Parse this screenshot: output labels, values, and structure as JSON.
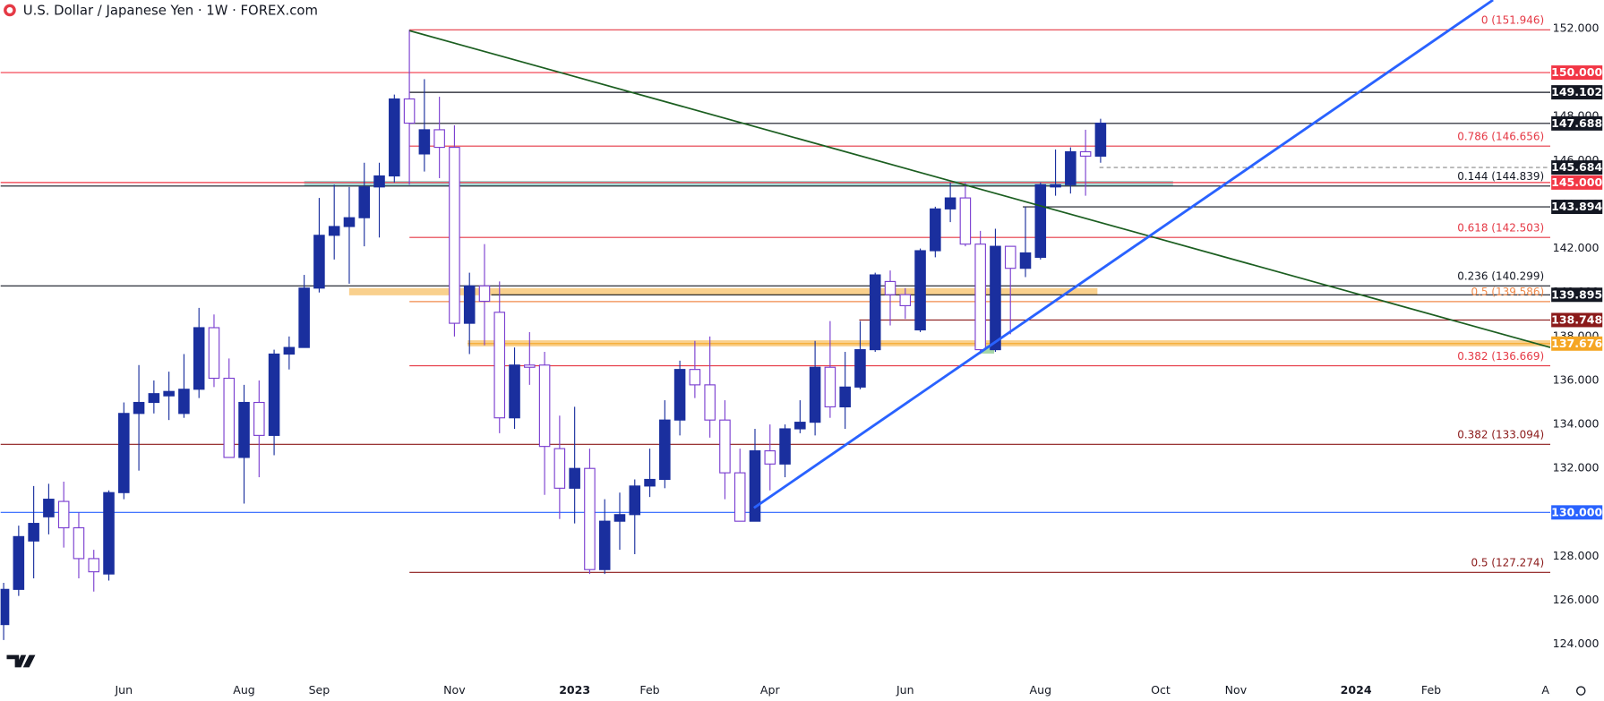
{
  "chart_data": {
    "type": "candlestick",
    "title": "U.S. Dollar / Japanese Yen · 1W · FOREX.com",
    "categories": [
      null,
      null,
      null,
      null,
      null,
      null,
      null,
      null,
      "Jun",
      null,
      null,
      null,
      null,
      null,
      null,
      null,
      "Aug",
      null,
      null,
      null,
      null,
      "Sep",
      null,
      null,
      null,
      null,
      null,
      null,
      null,
      null,
      "Nov",
      null,
      null,
      null,
      null,
      null,
      null,
      null,
      "2023",
      null,
      null,
      null,
      null,
      "Feb",
      null,
      null,
      null,
      null,
      null,
      null,
      null,
      "Apr",
      null,
      null,
      null,
      null,
      null,
      null,
      null,
      null,
      "Jun",
      null,
      null,
      null,
      null,
      null,
      null,
      null,
      null,
      "Aug",
      null,
      null,
      null,
      null,
      null,
      null,
      null,
      "Oct",
      null,
      null,
      null,
      null,
      "Nov",
      null,
      null,
      null,
      null,
      null,
      null,
      null,
      "2024",
      null,
      null,
      null,
      null,
      "Feb",
      null,
      null,
      null,
      null,
      null,
      null,
      null,
      "Apr"
    ],
    "open": [
      124.9,
      126.5,
      128.7,
      129.8,
      130.5,
      129.3,
      127.9,
      127.2,
      130.9,
      134.5,
      135.0,
      135.3,
      134.5,
      135.6,
      138.4,
      136.1,
      132.5,
      135.0,
      133.5,
      137.2,
      137.5,
      140.2,
      142.6,
      143.0,
      143.4,
      144.8,
      145.3,
      148.8,
      146.3,
      147.4,
      146.6,
      138.6,
      140.3,
      139.1,
      134.3,
      136.7,
      136.7,
      132.9,
      131.1,
      132.0,
      127.4,
      129.6,
      129.9,
      131.2,
      131.5,
      134.2,
      136.5,
      135.8,
      134.2,
      131.8,
      129.6,
      132.8,
      132.2,
      133.8,
      134.1,
      136.6,
      134.8,
      135.7,
      137.4,
      140.5,
      139.9,
      138.3,
      141.9,
      143.8,
      144.3,
      142.2,
      137.4,
      142.1,
      141.1,
      141.6,
      144.8,
      144.9,
      146.4,
      146.2,
      null,
      null,
      null,
      null,
      null,
      null,
      null,
      null,
      null,
      null,
      null,
      null,
      null,
      null,
      null,
      null,
      null,
      null,
      null,
      null,
      null,
      null,
      null,
      null,
      null,
      null,
      null,
      null,
      null,
      null
    ],
    "high": [
      126.8,
      129.4,
      131.2,
      131.3,
      131.4,
      130.0,
      128.3,
      131.0,
      135.0,
      136.7,
      136.0,
      136.4,
      137.2,
      139.3,
      139.0,
      137.0,
      135.8,
      136.0,
      137.4,
      138.0,
      140.8,
      144.3,
      144.9,
      144.8,
      145.9,
      145.9,
      149.0,
      151.946,
      149.7,
      148.9,
      147.6,
      140.9,
      142.2,
      140.5,
      137.5,
      138.2,
      137.3,
      134.4,
      134.8,
      132.9,
      130.6,
      130.9,
      131.5,
      132.9,
      135.1,
      136.9,
      137.8,
      138.0,
      135.1,
      132.9,
      133.8,
      134.0,
      134.0,
      135.1,
      137.8,
      138.7,
      137.3,
      138.7,
      140.9,
      141.0,
      140.2,
      142.0,
      143.9,
      145.0,
      145.0,
      142.8,
      142.9,
      142.1,
      143.9,
      145.0,
      146.5,
      146.6,
      147.4,
      147.9,
      null,
      null,
      null,
      null,
      null,
      null,
      null,
      null,
      null,
      null,
      null,
      null,
      null,
      null,
      null,
      null,
      null,
      null,
      null,
      null,
      null,
      null,
      null,
      null,
      null,
      null,
      null,
      null,
      null,
      null
    ],
    "low": [
      124.2,
      126.2,
      127.0,
      129.0,
      128.4,
      127.0,
      126.4,
      126.9,
      130.6,
      131.9,
      134.5,
      134.2,
      134.3,
      135.2,
      135.7,
      132.5,
      130.4,
      131.6,
      132.6,
      136.5,
      137.5,
      140.0,
      141.5,
      140.4,
      142.1,
      142.5,
      145.0,
      144.9,
      145.5,
      145.2,
      138.0,
      137.2,
      137.6,
      133.6,
      133.8,
      135.8,
      130.8,
      129.7,
      129.5,
      127.2,
      127.2,
      128.3,
      128.1,
      130.7,
      131.1,
      133.5,
      135.2,
      133.4,
      130.6,
      129.6,
      129.6,
      131.0,
      131.6,
      133.6,
      133.5,
      134.3,
      133.8,
      135.6,
      137.3,
      138.5,
      138.8,
      138.2,
      141.6,
      143.2,
      142.1,
      137.2,
      137.3,
      138.1,
      140.7,
      141.5,
      144.4,
      144.5,
      144.4,
      145.9,
      null,
      null,
      null,
      null,
      null,
      null,
      null,
      null,
      null,
      null,
      null,
      null,
      null,
      null,
      null,
      null,
      null,
      null,
      null,
      null,
      null,
      null,
      null,
      null,
      null,
      null,
      null,
      null,
      null,
      null
    ],
    "close": [
      126.5,
      128.9,
      129.5,
      130.6,
      129.3,
      127.9,
      127.3,
      130.9,
      134.5,
      135.0,
      135.4,
      135.5,
      135.6,
      138.4,
      136.1,
      132.5,
      135.0,
      133.5,
      137.2,
      137.5,
      140.2,
      142.6,
      143.0,
      143.4,
      144.8,
      145.3,
      148.8,
      147.7,
      147.4,
      146.6,
      138.6,
      140.3,
      139.6,
      134.3,
      136.7,
      136.6,
      133.0,
      131.1,
      132.0,
      127.4,
      129.6,
      129.9,
      131.2,
      131.5,
      134.2,
      136.5,
      135.8,
      134.2,
      131.8,
      129.6,
      132.8,
      132.2,
      133.8,
      134.1,
      136.6,
      134.8,
      135.7,
      137.4,
      140.8,
      139.9,
      139.4,
      141.9,
      143.8,
      144.3,
      142.2,
      137.4,
      142.1,
      141.1,
      141.8,
      144.9,
      144.9,
      146.4,
      146.2,
      147.7,
      null,
      null,
      null,
      null,
      null,
      null,
      null,
      null,
      null,
      null,
      null,
      null,
      null,
      null,
      null,
      null,
      null,
      null,
      null,
      null,
      null,
      null,
      null,
      null,
      null,
      null,
      null,
      null,
      null,
      null
    ],
    "up_color": "#1a2f9e",
    "down_color": "#ffffff",
    "down_border": "#7b3fd0",
    "ylim": [
      122.4,
      153.3
    ],
    "yticks": [
      {
        "value": 124,
        "label": "124.000"
      },
      {
        "value": 126,
        "label": "126.000"
      },
      {
        "value": 128,
        "label": "128.000"
      },
      {
        "value": 130,
        "label": "130.000"
      },
      {
        "value": 132,
        "label": "132.000"
      },
      {
        "value": 134,
        "label": "134.000"
      },
      {
        "value": 136,
        "label": "136.000"
      },
      {
        "value": 138,
        "label": "138.000"
      },
      {
        "value": 140,
        "label": "140.000"
      },
      {
        "value": 142,
        "label": "142.000"
      },
      {
        "value": 144,
        "label": "144.000"
      },
      {
        "value": 146,
        "label": "146.000"
      },
      {
        "value": 148,
        "label": "148.000"
      },
      {
        "value": 150,
        "label": "150.000"
      },
      {
        "value": 152,
        "label": "152.000"
      }
    ],
    "fib_levels": [
      {
        "value": 151.946,
        "label": "0 (151.946)",
        "color": "#e53945"
      },
      {
        "value": 146.656,
        "label": "0.786 (146.656)",
        "color": "#e53945"
      },
      {
        "value": 144.839,
        "label": "0.144 (144.839)",
        "color": "#131722"
      },
      {
        "value": 142.503,
        "label": "0.618 (142.503)",
        "color": "#e53945"
      },
      {
        "value": 140.299,
        "label": "0.236 (140.299)",
        "color": "#131722"
      },
      {
        "value": 139.586,
        "label": "0.5 (139.586)",
        "color": "#f08a4b"
      },
      {
        "value": 136.669,
        "label": "0.382 (136.669)",
        "color": "#e53945"
      },
      {
        "value": 133.094,
        "label": "0.382 (133.094)",
        "color": "#8b1a1a"
      },
      {
        "value": 127.274,
        "label": "0.5 (127.274)",
        "color": "#8b1a1a"
      }
    ],
    "price_labels": [
      {
        "value": 150,
        "label": "150.000",
        "color": "#f23645"
      },
      {
        "value": 149.102,
        "label": "149.102",
        "color": "#131722"
      },
      {
        "value": 147.688,
        "label": "147.688",
        "color": "#131722"
      },
      {
        "value": 145.684,
        "label": "145.684",
        "color": "#131722"
      },
      {
        "value": 145,
        "label": "145.000",
        "color": "#f23645"
      },
      {
        "value": 143.894,
        "label": "143.894",
        "color": "#131722"
      },
      {
        "value": 139.895,
        "label": "139.895",
        "color": "#131722"
      },
      {
        "value": 138.748,
        "label": "138.748",
        "color": "#8b1a1a"
      },
      {
        "value": 137.676,
        "label": "137.676",
        "color": "#f5a623"
      },
      {
        "value": 130,
        "label": "130.000",
        "color": "#2962ff"
      }
    ]
  }
}
